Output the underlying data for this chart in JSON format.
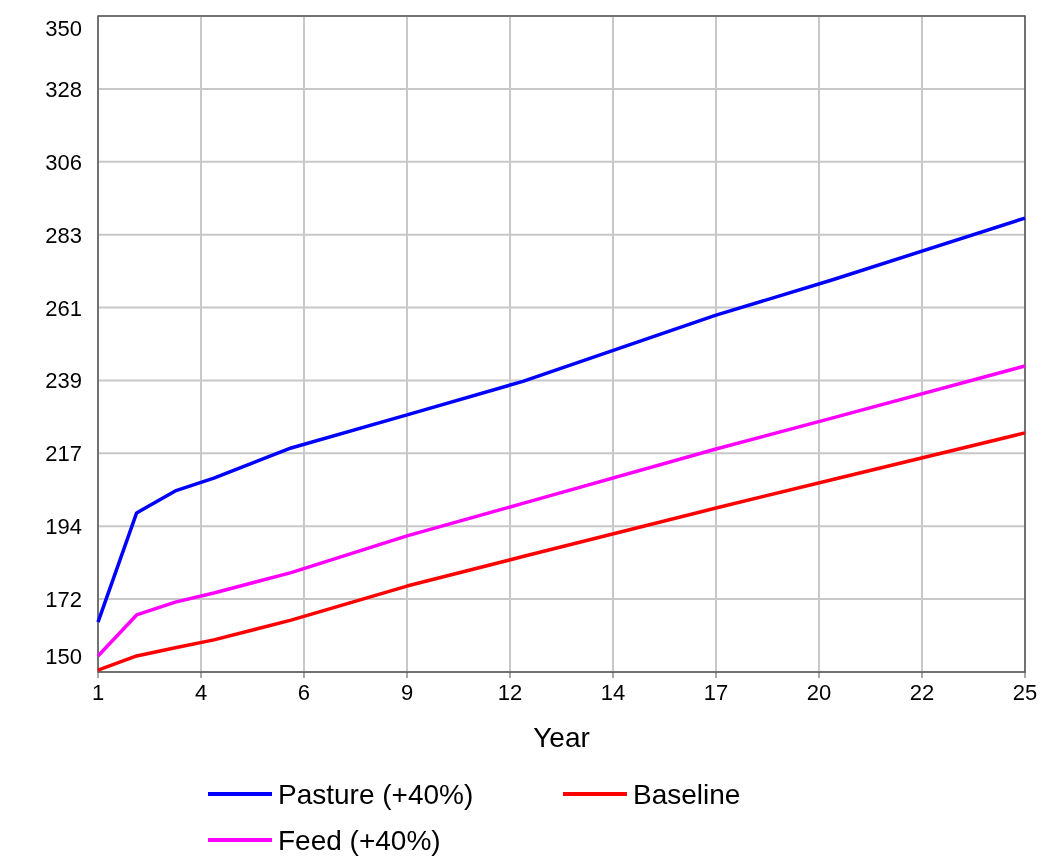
{
  "chart_data": {
    "type": "line",
    "xlabel": "Year",
    "x": [
      1,
      2,
      3,
      4,
      6,
      9,
      12,
      17,
      20,
      25
    ],
    "series": [
      {
        "name": "Pasture (+40%)",
        "color": "#0000ff",
        "values": [
          165.2,
          198.5,
          205.2,
          209.1,
          218.3,
          228.4,
          238.6,
          258.8,
          269.5,
          288.4
        ]
      },
      {
        "name": "Baseline",
        "color": "#ff0000",
        "values": [
          150.6,
          154.9,
          157.4,
          159.8,
          165.8,
          176.2,
          185.2,
          200,
          208.6,
          222.9
        ]
      },
      {
        "name": "Feed (+40%)",
        "color": "#ff00ff",
        "values": [
          154.9,
          167.4,
          171.3,
          174.1,
          180.3,
          191.5,
          201.4,
          218,
          227.4,
          243.3
        ]
      }
    ],
    "xlim": [
      1,
      25
    ],
    "xticks": [
      1,
      {
        "value": 3.667,
        "label": "4"
      },
      {
        "value": 6.333,
        "label": "6"
      },
      9,
      {
        "value": 11.667,
        "label": "12"
      },
      {
        "value": 14.333,
        "label": "14"
      },
      17,
      {
        "value": 19.667,
        "label": "20"
      },
      {
        "value": 22.333,
        "label": "22"
      },
      25
    ],
    "ylim": [
      150,
      350
    ],
    "yticks": [
      150,
      {
        "value": 172.22,
        "label": "172"
      },
      {
        "value": 194.44,
        "label": "194"
      },
      {
        "value": 216.67,
        "label": "217"
      },
      {
        "value": 238.89,
        "label": "239"
      },
      {
        "value": 261.11,
        "label": "261"
      },
      {
        "value": 283.33,
        "label": "283"
      },
      {
        "value": 305.56,
        "label": "306"
      },
      {
        "value": 327.78,
        "label": "328"
      },
      350
    ],
    "grid": true,
    "legend": "bottom",
    "line_style": "solid"
  }
}
